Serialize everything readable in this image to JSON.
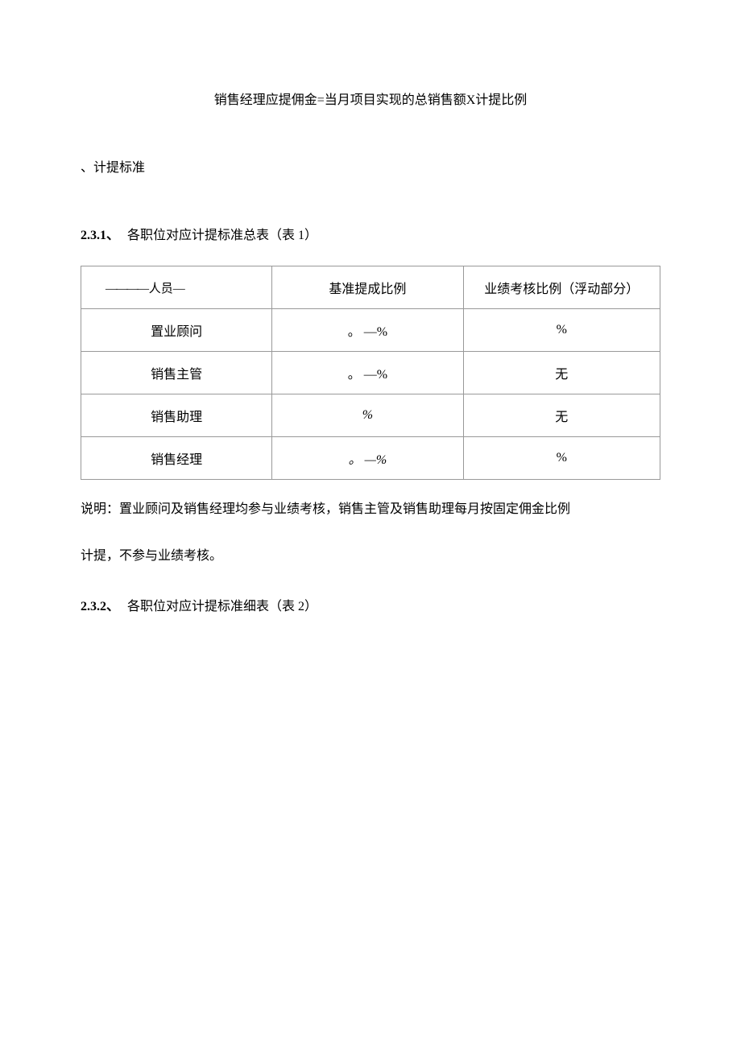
{
  "formula": "销售经理应提佣金=当月项目实现的总销售额X计提比例",
  "section_heading": "、计提标准",
  "subsection1": {
    "number": "2.3.1、",
    "text": "各职位对应计提标准总表（表 1）"
  },
  "table1": {
    "columns": [
      "人员",
      "基准提成比例",
      "业绩考核比例（浮动部分）"
    ],
    "rows": [
      {
        "person": "置业顾问",
        "base": "。 —%",
        "perf": "%"
      },
      {
        "person": "销售主管",
        "base": "。 —%",
        "perf": "无"
      },
      {
        "person": "销售助理",
        "base": "%",
        "perf": "无"
      },
      {
        "person": "销售经理",
        "base": "。 —%",
        "perf": "%"
      }
    ]
  },
  "note_line1": "说明：置业顾问及销售经理均参与业绩考核，销售主管及销售助理每月按固定佣金比例",
  "note_line2": "计提，不参与业绩考核。",
  "subsection2": {
    "number": "2.3.2、",
    "text": "各职位对应计提标准细表（表 2）"
  }
}
